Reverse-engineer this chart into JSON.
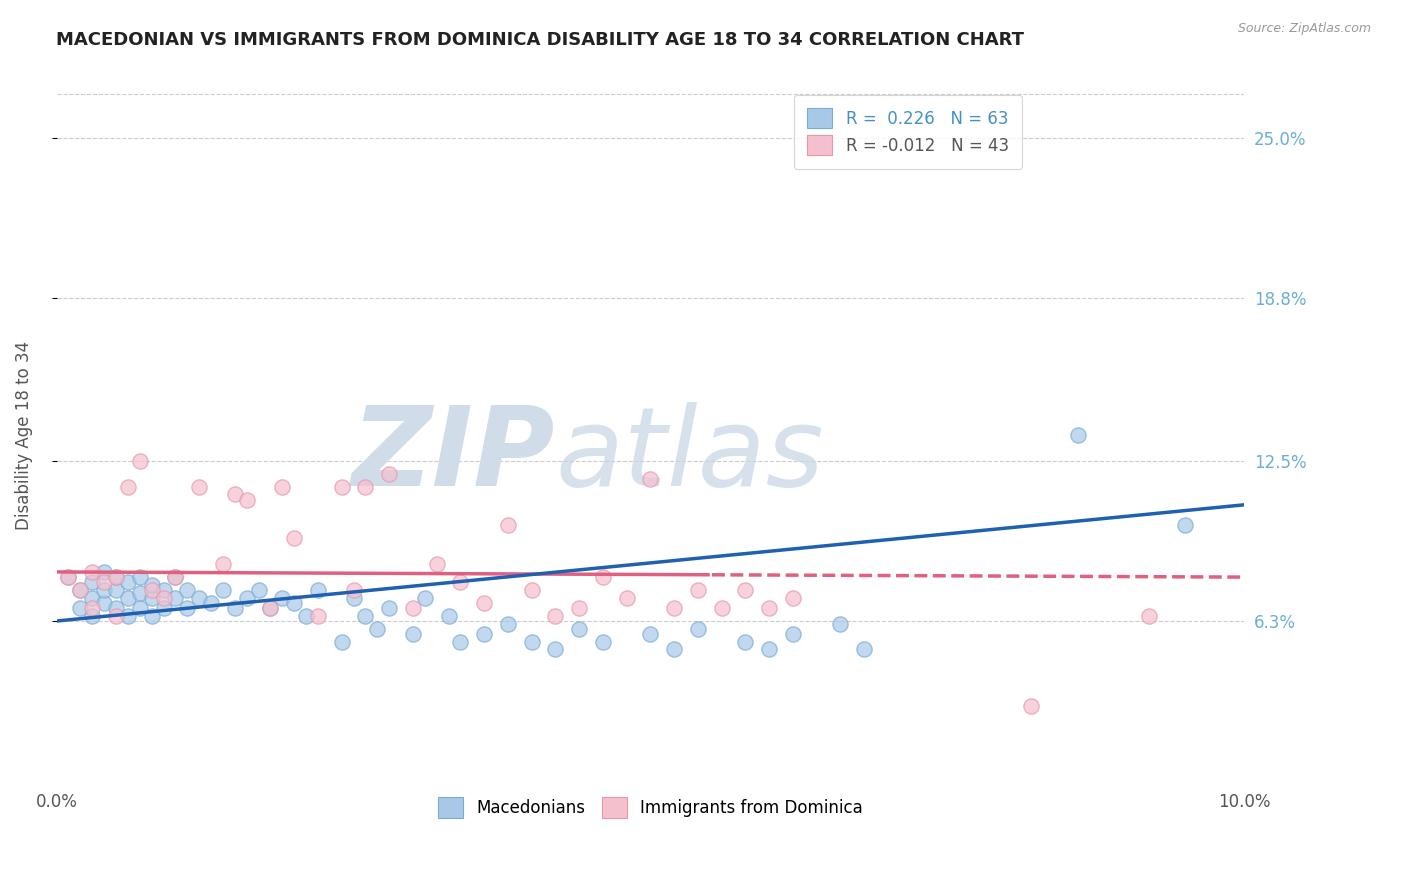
{
  "title": "MACEDONIAN VS IMMIGRANTS FROM DOMINICA DISABILITY AGE 18 TO 34 CORRELATION CHART",
  "source": "Source: ZipAtlas.com",
  "ylabel_label": "Disability Age 18 to 34",
  "ytick_labels": [
    "6.3%",
    "12.5%",
    "18.8%",
    "25.0%"
  ],
  "ytick_values": [
    0.063,
    0.125,
    0.188,
    0.25
  ],
  "xlim": [
    0.0,
    0.1
  ],
  "ylim": [
    0.0,
    0.27
  ],
  "legend1_r": "0.226",
  "legend1_n": "63",
  "legend2_r": "-0.012",
  "legend2_n": "43",
  "color_blue": "#a8c8e8",
  "color_blue_edge": "#7aadd4",
  "color_pink": "#f5c0ce",
  "color_pink_edge": "#e898aa",
  "color_trend_blue": "#2060b0",
  "color_trend_pink": "#e06080",
  "background_color": "#ffffff",
  "macedonian_x": [
    0.001,
    0.002,
    0.002,
    0.003,
    0.003,
    0.003,
    0.004,
    0.004,
    0.004,
    0.005,
    0.005,
    0.005,
    0.006,
    0.006,
    0.006,
    0.007,
    0.007,
    0.007,
    0.008,
    0.008,
    0.008,
    0.009,
    0.009,
    0.01,
    0.01,
    0.011,
    0.011,
    0.012,
    0.013,
    0.014,
    0.015,
    0.016,
    0.017,
    0.018,
    0.019,
    0.02,
    0.021,
    0.022,
    0.024,
    0.025,
    0.026,
    0.027,
    0.028,
    0.03,
    0.031,
    0.033,
    0.034,
    0.036,
    0.038,
    0.04,
    0.042,
    0.044,
    0.046,
    0.05,
    0.052,
    0.054,
    0.058,
    0.06,
    0.062,
    0.066,
    0.068,
    0.086,
    0.095
  ],
  "macedonian_y": [
    0.08,
    0.075,
    0.068,
    0.072,
    0.065,
    0.078,
    0.07,
    0.075,
    0.082,
    0.068,
    0.075,
    0.08,
    0.065,
    0.072,
    0.078,
    0.068,
    0.074,
    0.08,
    0.065,
    0.072,
    0.077,
    0.068,
    0.075,
    0.072,
    0.08,
    0.068,
    0.075,
    0.072,
    0.07,
    0.075,
    0.068,
    0.072,
    0.075,
    0.068,
    0.072,
    0.07,
    0.065,
    0.075,
    0.055,
    0.072,
    0.065,
    0.06,
    0.068,
    0.058,
    0.072,
    0.065,
    0.055,
    0.058,
    0.062,
    0.055,
    0.052,
    0.06,
    0.055,
    0.058,
    0.052,
    0.06,
    0.055,
    0.052,
    0.058,
    0.062,
    0.052,
    0.135,
    0.1
  ],
  "dominica_x": [
    0.001,
    0.002,
    0.003,
    0.003,
    0.004,
    0.005,
    0.005,
    0.006,
    0.007,
    0.008,
    0.009,
    0.01,
    0.012,
    0.014,
    0.015,
    0.016,
    0.018,
    0.019,
    0.02,
    0.022,
    0.024,
    0.025,
    0.026,
    0.028,
    0.03,
    0.032,
    0.034,
    0.036,
    0.038,
    0.04,
    0.042,
    0.044,
    0.046,
    0.048,
    0.05,
    0.052,
    0.054,
    0.056,
    0.058,
    0.06,
    0.062,
    0.082,
    0.092
  ],
  "dominica_y": [
    0.08,
    0.075,
    0.082,
    0.068,
    0.078,
    0.08,
    0.065,
    0.115,
    0.125,
    0.075,
    0.072,
    0.08,
    0.115,
    0.085,
    0.112,
    0.11,
    0.068,
    0.115,
    0.095,
    0.065,
    0.115,
    0.075,
    0.115,
    0.12,
    0.068,
    0.085,
    0.078,
    0.07,
    0.1,
    0.075,
    0.065,
    0.068,
    0.08,
    0.072,
    0.118,
    0.068,
    0.075,
    0.068,
    0.075,
    0.068,
    0.072,
    0.03,
    0.065
  ]
}
